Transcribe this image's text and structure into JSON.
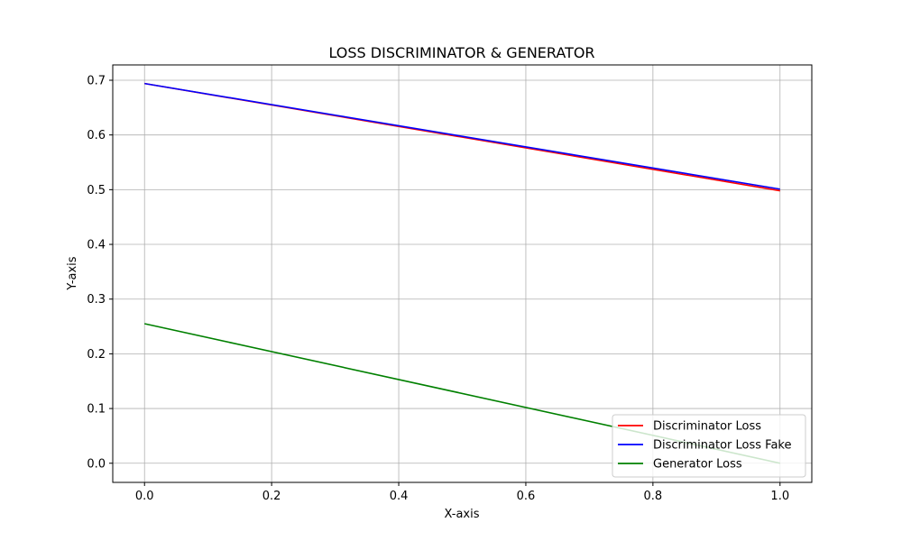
{
  "chart_data": {
    "type": "line",
    "title": "LOSS DISCRIMINATOR & GENERATOR",
    "xlabel": "X-axis",
    "ylabel": "Y-axis",
    "xlim": [
      -0.05,
      1.05
    ],
    "ylim": [
      -0.035,
      0.728
    ],
    "xticks": [
      "0.0",
      "0.2",
      "0.4",
      "0.6",
      "0.8",
      "1.0"
    ],
    "yticks": [
      "0.0",
      "0.1",
      "0.2",
      "0.3",
      "0.4",
      "0.5",
      "0.6",
      "0.7"
    ],
    "grid": true,
    "legend_position": "lower right",
    "x": [
      0,
      1
    ],
    "series": [
      {
        "name": "Discriminator Loss",
        "color": "#ff0000",
        "values": [
          0.694,
          0.498
        ]
      },
      {
        "name": "Discriminator Loss Fake",
        "color": "#0000ff",
        "values": [
          0.694,
          0.501
        ]
      },
      {
        "name": "Generator Loss",
        "color": "#008000",
        "values": [
          0.255,
          0.0
        ]
      }
    ]
  }
}
